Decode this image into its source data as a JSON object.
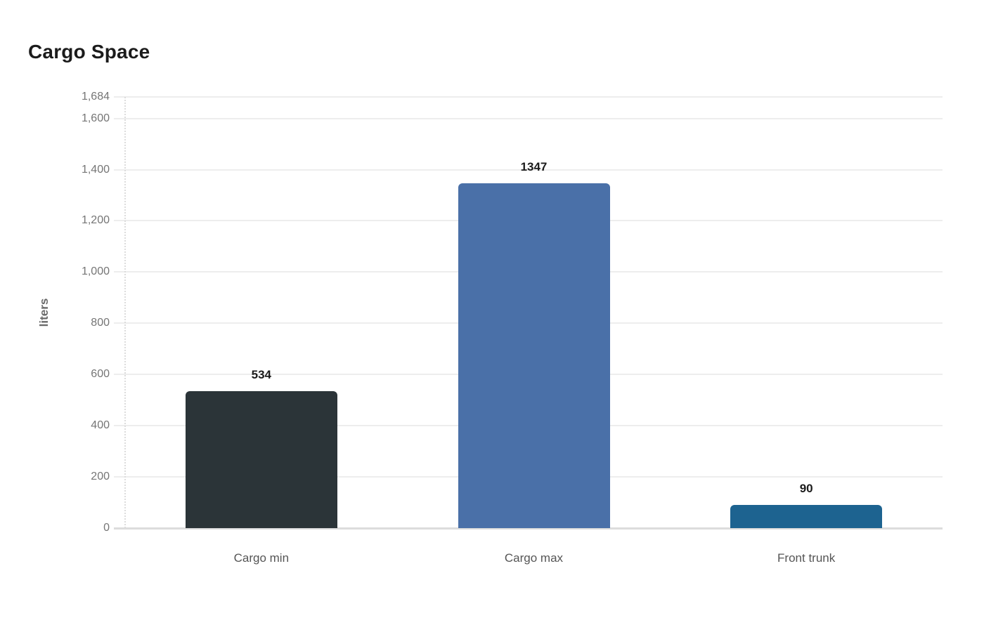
{
  "chart_data": {
    "type": "bar",
    "title": "Cargo Space",
    "xlabel": "",
    "ylabel": "liters",
    "categories": [
      "Cargo min",
      "Cargo max",
      "Front trunk"
    ],
    "values": [
      534,
      1347,
      90
    ],
    "value_labels": [
      "534",
      "1347",
      "90"
    ],
    "bar_colors": [
      "#2b3438",
      "#4a70a8",
      "#1d6390"
    ],
    "ylim": [
      0,
      1684
    ],
    "yticks": [
      0,
      200,
      400,
      600,
      800,
      1000,
      1200,
      1400,
      1600,
      1684
    ],
    "ytick_labels": [
      "0",
      "200",
      "400",
      "600",
      "800",
      "1,000",
      "1,200",
      "1,400",
      "1,600",
      "1,684"
    ],
    "grid": true,
    "legend_position": "none"
  }
}
